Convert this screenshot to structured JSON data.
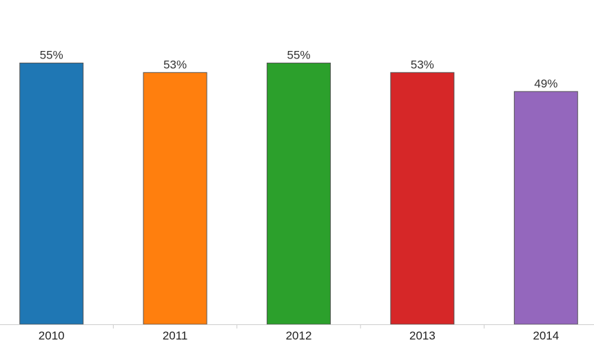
{
  "chart_data": {
    "type": "bar",
    "categories": [
      "2010",
      "2011",
      "2012",
      "2013",
      "2014"
    ],
    "values": [
      55,
      53,
      55,
      53,
      49
    ],
    "data_labels": [
      "55%",
      "53%",
      "55%",
      "53%",
      "49%"
    ],
    "colors": [
      "#1f77b4",
      "#ff7f0e",
      "#2ca02c",
      "#d62728",
      "#9467bd"
    ],
    "title": "",
    "xlabel": "",
    "ylabel": "",
    "ylim": [
      0,
      100
    ],
    "grid": false,
    "legend": "none"
  }
}
